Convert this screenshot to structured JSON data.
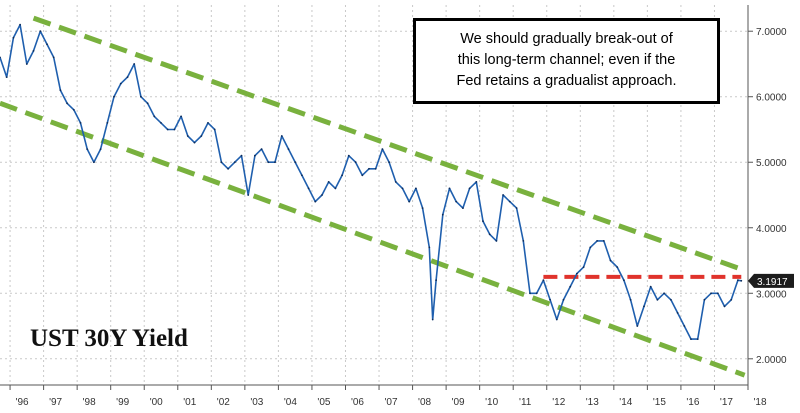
{
  "chart_data": {
    "type": "line",
    "title": "UST 30Y Yield",
    "annotation": {
      "lines": [
        "We should gradually break-out of",
        "this long-term channel; even if the",
        "Fed retains a gradualist approach."
      ]
    },
    "x_tick_labels": [
      "'96",
      "'97",
      "'98",
      "'99",
      "'00",
      "'01",
      "'02",
      "'03",
      "'04",
      "'05",
      "'06",
      "'07",
      "'08",
      "'09",
      "'10",
      "'11",
      "'12",
      "'13",
      "'14",
      "'15",
      "'16",
      "'17",
      "'18"
    ],
    "y_ticks": [
      "2.0000",
      "3.0000",
      "4.0000",
      "5.0000",
      "6.0000",
      "7.0000"
    ],
    "xlim": [
      1996.0,
      2018.3
    ],
    "ylim": [
      1.6,
      7.4
    ],
    "last_value_label": "3.1917",
    "series": [
      {
        "color": "#1f5fae",
        "x": [
          1996.0,
          1996.2,
          1996.4,
          1996.6,
          1996.8,
          1997.0,
          1997.2,
          1997.4,
          1997.6,
          1997.8,
          1998.0,
          1998.2,
          1998.4,
          1998.6,
          1998.8,
          1999.0,
          1999.2,
          1999.4,
          1999.6,
          1999.8,
          2000.0,
          2000.2,
          2000.4,
          2000.6,
          2000.8,
          2001.0,
          2001.2,
          2001.4,
          2001.6,
          2001.8,
          2002.0,
          2002.2,
          2002.4,
          2002.6,
          2002.8,
          2003.0,
          2003.2,
          2003.4,
          2003.6,
          2003.8,
          2004.0,
          2004.2,
          2004.4,
          2004.6,
          2004.8,
          2005.0,
          2005.2,
          2005.4,
          2005.6,
          2005.8,
          2006.0,
          2006.2,
          2006.4,
          2006.6,
          2006.8,
          2007.0,
          2007.2,
          2007.4,
          2007.6,
          2007.8,
          2008.0,
          2008.2,
          2008.4,
          2008.6,
          2008.8,
          2008.9,
          2009.0,
          2009.2,
          2009.4,
          2009.6,
          2009.8,
          2010.0,
          2010.2,
          2010.4,
          2010.6,
          2010.8,
          2011.0,
          2011.2,
          2011.4,
          2011.6,
          2011.8,
          2012.0,
          2012.2,
          2012.4,
          2012.6,
          2012.8,
          2013.0,
          2013.2,
          2013.4,
          2013.6,
          2013.8,
          2014.0,
          2014.2,
          2014.4,
          2014.6,
          2014.8,
          2015.0,
          2015.2,
          2015.4,
          2015.6,
          2015.8,
          2016.0,
          2016.2,
          2016.4,
          2016.6,
          2016.8,
          2017.0,
          2017.2,
          2017.4,
          2017.6,
          2017.8,
          2018.0,
          2018.1
        ],
        "y": [
          6.6,
          6.3,
          6.9,
          7.1,
          6.5,
          6.7,
          7.0,
          6.8,
          6.6,
          6.1,
          5.9,
          5.8,
          5.6,
          5.2,
          5.0,
          5.2,
          5.6,
          6.0,
          6.2,
          6.3,
          6.5,
          6.0,
          5.9,
          5.7,
          5.6,
          5.5,
          5.5,
          5.7,
          5.4,
          5.3,
          5.4,
          5.6,
          5.5,
          5.0,
          4.9,
          5.0,
          5.1,
          4.5,
          5.1,
          5.2,
          5.0,
          5.0,
          5.4,
          5.2,
          5.0,
          4.8,
          4.6,
          4.4,
          4.5,
          4.7,
          4.6,
          4.8,
          5.1,
          5.0,
          4.8,
          4.9,
          4.9,
          5.2,
          5.0,
          4.7,
          4.6,
          4.4,
          4.6,
          4.3,
          3.7,
          2.6,
          3.2,
          4.2,
          4.6,
          4.4,
          4.3,
          4.6,
          4.7,
          4.1,
          3.9,
          3.8,
          4.5,
          4.4,
          4.3,
          3.8,
          3.0,
          3.0,
          3.2,
          2.9,
          2.6,
          2.9,
          3.1,
          3.3,
          3.4,
          3.7,
          3.8,
          3.8,
          3.5,
          3.4,
          3.2,
          2.9,
          2.5,
          2.8,
          3.1,
          2.9,
          3.0,
          2.9,
          2.7,
          2.5,
          2.3,
          2.3,
          2.9,
          3.0,
          3.0,
          2.8,
          2.9,
          3.2,
          3.19
        ]
      }
    ]
  }
}
